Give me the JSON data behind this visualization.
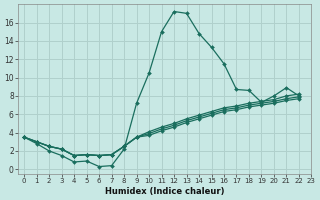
{
  "xlabel": "Humidex (Indice chaleur)",
  "ylabel": "",
  "bg_color": "#c8e8e4",
  "grid_color": "#b0d0cc",
  "line_color": "#1a6e5e",
  "xlim": [
    -0.5,
    23
  ],
  "ylim": [
    -0.5,
    18
  ],
  "xticks": [
    0,
    1,
    2,
    3,
    4,
    5,
    6,
    7,
    8,
    9,
    10,
    11,
    12,
    13,
    14,
    15,
    16,
    17,
    18,
    19,
    20,
    21,
    22,
    23
  ],
  "yticks": [
    0,
    2,
    4,
    6,
    8,
    10,
    12,
    14,
    16
  ],
  "series": [
    [
      3.5,
      2.8,
      2.0,
      1.5,
      0.8,
      0.9,
      0.3,
      0.4,
      2.2,
      7.2,
      10.5,
      15.0,
      17.2,
      17.0,
      14.8,
      13.3,
      11.5,
      8.7,
      8.6,
      7.3,
      8.0,
      8.9,
      8.0
    ],
    [
      3.5,
      3.0,
      2.5,
      2.2,
      1.5,
      1.6,
      1.5,
      1.6,
      2.5,
      3.5,
      4.1,
      4.6,
      5.0,
      5.5,
      5.9,
      6.3,
      6.7,
      6.9,
      7.2,
      7.4,
      7.6,
      8.0,
      8.2
    ],
    [
      3.5,
      3.0,
      2.5,
      2.2,
      1.5,
      1.6,
      1.5,
      1.6,
      2.5,
      3.5,
      3.9,
      4.4,
      4.8,
      5.3,
      5.7,
      6.1,
      6.5,
      6.7,
      7.0,
      7.2,
      7.4,
      7.7,
      7.9
    ],
    [
      3.5,
      3.0,
      2.5,
      2.2,
      1.5,
      1.6,
      1.5,
      1.6,
      2.5,
      3.5,
      3.7,
      4.2,
      4.6,
      5.1,
      5.5,
      5.9,
      6.3,
      6.5,
      6.8,
      7.0,
      7.2,
      7.5,
      7.7
    ]
  ]
}
